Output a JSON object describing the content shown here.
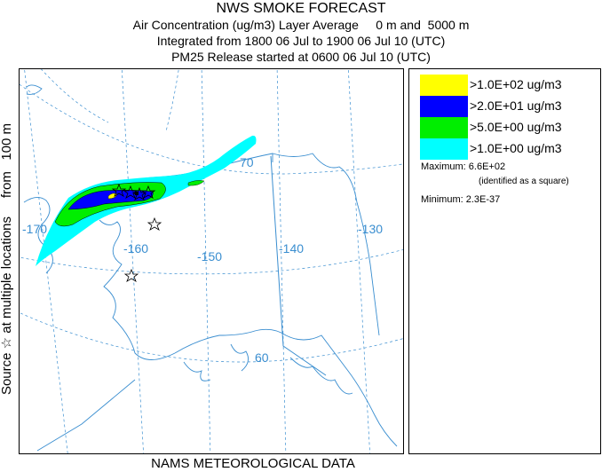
{
  "header": {
    "title": "NWS SMOKE FORECAST",
    "line1": "Air Concentration (ug/m3) Layer Average     0 m and  5000 m",
    "line2": "Integrated from 1800 06 Jul to 1900 06 Jul 10 (UTC)",
    "line3": "PM25 Release started at 0600 06 Jul 10 (UTC)"
  },
  "side_label": "Source ☆ at multiple locations     from   100 m",
  "footer": "NAMS METEOROLOGICAL DATA",
  "map": {
    "graticule_labels": [
      "-170",
      "-160",
      "-150",
      "-140",
      "-130",
      "70",
      "60"
    ],
    "colors": {
      "graticule": "#3a8ed0",
      "land_outline": "#3a8ed0"
    }
  },
  "legend": {
    "items": [
      {
        "label": ">1.0E+02 ug/m3",
        "color": "#ffff00"
      },
      {
        "label": ">2.0E+01 ug/m3",
        "color": "#0000ff"
      },
      {
        "label": ">5.0E+00 ug/m3",
        "color": "#00ee00"
      },
      {
        "label": ">1.0E+00 ug/m3",
        "color": "#00ffff"
      }
    ],
    "maximum": "Maximum: 6.6E+02",
    "maximum_note": "(identified as a square)",
    "minimum": "Minimum: 2.3E-37"
  }
}
